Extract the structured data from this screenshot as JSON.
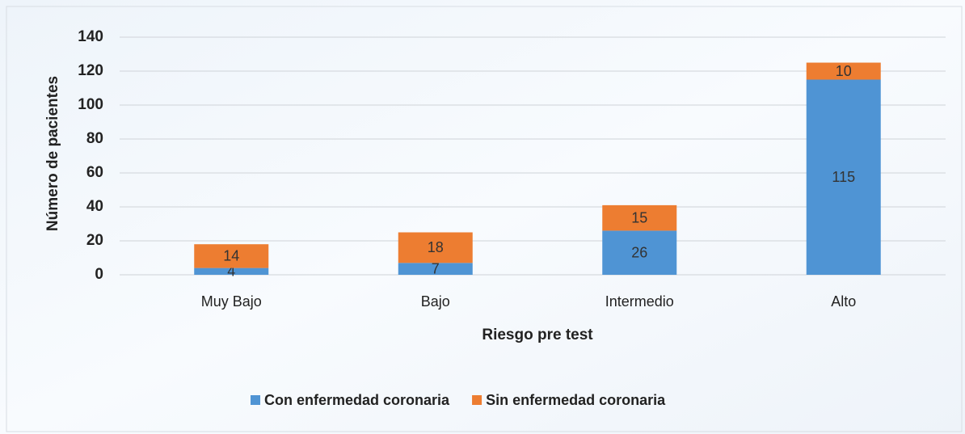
{
  "chart_data": {
    "type": "stacked_bar",
    "x_label": "Riesgo pre test",
    "y_label": "Número de pacientes",
    "categories": [
      "Muy Bajo",
      "Bajo",
      "Intermedio",
      "Alto"
    ],
    "series": [
      {
        "name": "Con enfermedad coronaria",
        "color": "#4f94d4",
        "values": [
          4,
          7,
          26,
          115
        ]
      },
      {
        "name": "Sin enfermedad coronaria",
        "color": "#ed7d31",
        "values": [
          14,
          18,
          15,
          10
        ]
      }
    ],
    "ylim": [
      0,
      140
    ],
    "yticks": [
      0,
      20,
      40,
      60,
      80,
      100,
      120,
      140
    ],
    "grid": true,
    "legend": "bottom"
  }
}
